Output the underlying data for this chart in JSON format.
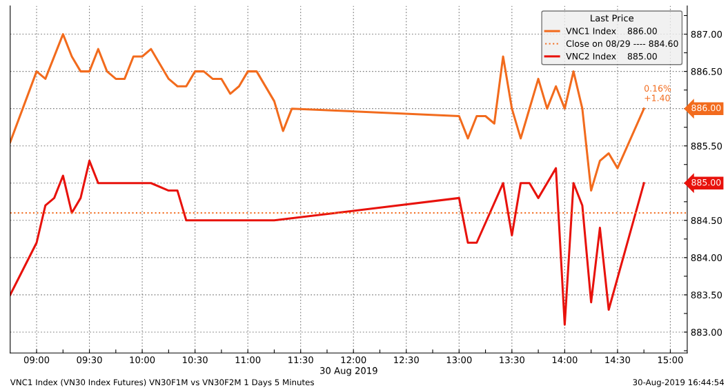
{
  "chart_data": {
    "type": "line",
    "xlabel": "30 Aug 2019",
    "legend_title": "Last Price",
    "legend": "top right",
    "grid": true,
    "line_style": "solid",
    "marker": "none",
    "xlim": [
      8.75,
      15.16
    ],
    "ylim": [
      882.72,
      887.38
    ],
    "xticks": [
      {
        "value": 9,
        "label": "09:00"
      },
      {
        "value": 9.25,
        "label": null
      },
      {
        "value": 9.5,
        "label": "09:30"
      },
      {
        "value": 9.75,
        "label": null
      },
      {
        "value": 10,
        "label": "10:00"
      },
      {
        "value": 10.25,
        "label": null
      },
      {
        "value": 10.5,
        "label": "10:30"
      },
      {
        "value": 10.75,
        "label": null
      },
      {
        "value": 11,
        "label": "11:00"
      },
      {
        "value": 11.25,
        "label": null
      },
      {
        "value": 11.5,
        "label": "11:30"
      },
      {
        "value": 11.75,
        "label": null
      },
      {
        "value": 12,
        "label": "12:00"
      },
      {
        "value": 12.25,
        "label": null
      },
      {
        "value": 12.5,
        "label": "12:30"
      },
      {
        "value": 12.75,
        "label": null
      },
      {
        "value": 13,
        "label": "13:00"
      },
      {
        "value": 13.25,
        "label": null
      },
      {
        "value": 13.5,
        "label": "13:30"
      },
      {
        "value": 13.75,
        "label": null
      },
      {
        "value": 14,
        "label": "14:00"
      },
      {
        "value": 14.25,
        "label": null
      },
      {
        "value": 14.5,
        "label": "14:30"
      },
      {
        "value": 14.75,
        "label": null
      },
      {
        "value": 15,
        "label": "15:00"
      }
    ],
    "yticks": [
      {
        "value": 882.75,
        "label": null
      },
      {
        "value": 883,
        "label": "883.00"
      },
      {
        "value": 883.25,
        "label": null
      },
      {
        "value": 883.5,
        "label": "883.50"
      },
      {
        "value": 883.75,
        "label": null
      },
      {
        "value": 884,
        "label": "884.00"
      },
      {
        "value": 884.25,
        "label": null
      },
      {
        "value": 884.5,
        "label": "884.50"
      },
      {
        "value": 884.75,
        "label": null
      },
      {
        "value": 885,
        "label": "885.00"
      },
      {
        "value": 885.25,
        "label": null
      },
      {
        "value": 885.5,
        "label": "885.50"
      },
      {
        "value": 885.75,
        "label": null
      },
      {
        "value": 886,
        "label": "886.00"
      },
      {
        "value": 886.25,
        "label": null
      },
      {
        "value": 886.5,
        "label": "886.50"
      },
      {
        "value": 886.75,
        "label": null
      },
      {
        "value": 887,
        "label": "887.00"
      },
      {
        "value": 887.25,
        "label": null
      }
    ],
    "series": [
      {
        "name": "VNC1 Index",
        "color": "#f26b1d",
        "x": [
          8.75,
          9.0,
          9.0833,
          9.25,
          9.3333,
          9.4167,
          9.5,
          9.5833,
          9.6667,
          9.75,
          9.8333,
          9.9167,
          10.0,
          10.0833,
          10.25,
          10.3333,
          10.4167,
          10.5,
          10.5833,
          10.6667,
          10.75,
          10.8333,
          10.9167,
          11.0,
          11.0833,
          11.25,
          11.3333,
          11.4167,
          13.0,
          13.0833,
          13.1667,
          13.25,
          13.3333,
          13.4167,
          13.5,
          13.5833,
          13.75,
          13.8333,
          13.9167,
          14.0,
          14.0833,
          14.1667,
          14.25,
          14.3333,
          14.4167,
          14.5,
          14.75
        ],
        "values": [
          885.55,
          886.5,
          886.4,
          887.0,
          886.7,
          886.5,
          886.5,
          886.8,
          886.5,
          886.4,
          886.4,
          886.7,
          886.7,
          886.8,
          886.4,
          886.3,
          886.3,
          886.5,
          886.5,
          886.4,
          886.4,
          886.2,
          886.3,
          886.5,
          886.5,
          886.1,
          885.7,
          886.0,
          885.9,
          885.6,
          885.9,
          885.9,
          885.8,
          886.7,
          886.0,
          885.6,
          886.4,
          886.0,
          886.3,
          886.0,
          886.5,
          886.0,
          884.9,
          885.3,
          885.4,
          885.2,
          886.0
        ]
      },
      {
        "name": "VNC2 Index",
        "color": "#e8120c",
        "x": [
          8.75,
          9.0,
          9.0833,
          9.1667,
          9.25,
          9.3333,
          9.4167,
          9.5,
          9.5833,
          10.0833,
          10.25,
          10.3333,
          10.4167,
          11.25,
          13.0,
          13.0833,
          13.1667,
          13.4167,
          13.5,
          13.5833,
          13.6667,
          13.75,
          13.9167,
          14.0,
          14.0833,
          14.1667,
          14.25,
          14.3333,
          14.4167,
          14.75
        ],
        "values": [
          883.5,
          884.2,
          884.7,
          884.8,
          885.1,
          884.6,
          884.8,
          885.3,
          885.0,
          885.0,
          884.9,
          884.9,
          884.5,
          884.5,
          884.8,
          884.2,
          884.2,
          885.0,
          884.3,
          885.0,
          885.0,
          884.8,
          885.2,
          883.1,
          885.0,
          884.7,
          883.4,
          884.4,
          883.3,
          885.0
        ]
      }
    ],
    "ref_lines": [
      {
        "axis": "y",
        "value": 884.6,
        "label": "Close on 08/29 ---- 884.60",
        "color": "#f26b1d",
        "line_style": "dotted"
      }
    ],
    "annotations": [
      "886.00",
      "885.00",
      {
        "text": "0.16%\n+1.40",
        "x": 14.75,
        "y": 886.0
      },
      "VNC1 Index (VN30 Index Futures) VN30F1M vs VN30F2M 1 Days 5 Minutes",
      "30-Aug-2019 16:44:54"
    ]
  }
}
